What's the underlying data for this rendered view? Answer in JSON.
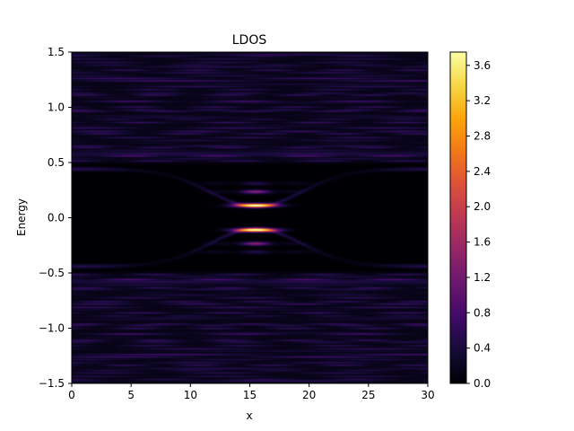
{
  "chart_data": {
    "type": "heatmap",
    "title": "LDOS",
    "xlabel": "x",
    "ylabel": "Energy",
    "xlim": [
      0,
      30
    ],
    "ylim": [
      -1.5,
      1.5
    ],
    "x_ticks": [
      0,
      5,
      10,
      15,
      20,
      25,
      30
    ],
    "x_tick_labels": [
      "0",
      "5",
      "10",
      "15",
      "20",
      "25",
      "30"
    ],
    "y_ticks": [
      -1.5,
      -1.0,
      -0.5,
      0.0,
      0.5,
      1.0,
      1.5
    ],
    "y_tick_labels": [
      "−1.5",
      "−1.0",
      "−0.5",
      "0.0",
      "0.5",
      "1.0",
      "1.5"
    ],
    "colormap": "inferno",
    "colorbar": {
      "range": [
        0,
        3.75
      ],
      "ticks": [
        0.0,
        0.4,
        0.8,
        1.2,
        1.6,
        2.0,
        2.4,
        2.8,
        3.2,
        3.6
      ],
      "tick_labels": [
        "0.0",
        "0.4",
        "0.8",
        "1.2",
        "1.6",
        "2.0",
        "2.4",
        "2.8",
        "3.2",
        "3.6"
      ]
    },
    "grid": false,
    "features": {
      "bound_state_energies": [
        0.11,
        -0.11,
        0.23,
        -0.23,
        0.3,
        -0.3
      ],
      "bound_state_center_x": 15.5,
      "peak_value": 3.75,
      "gap_edge": 0.42,
      "continuum_level": 0.35
    }
  }
}
